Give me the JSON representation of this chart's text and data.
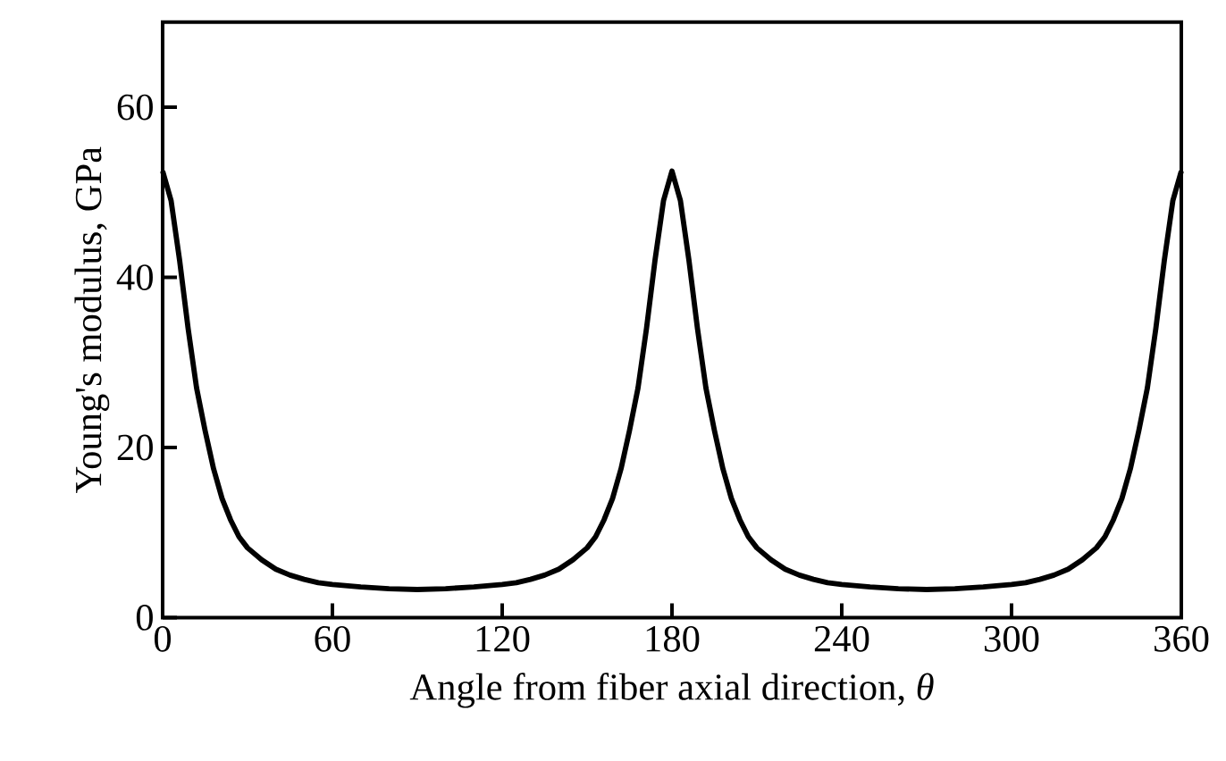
{
  "chart_data": {
    "type": "line",
    "xlabel": "Angle from fiber axial direction,  *θ*",
    "ylabel": "Young's modulus, GPa",
    "xlim": [
      0,
      360
    ],
    "ylim": [
      0,
      70
    ],
    "xticks": [
      0,
      60,
      120,
      180,
      240,
      300,
      360
    ],
    "yticks": [
      0,
      20,
      40,
      60
    ],
    "grid": false,
    "marker": "none",
    "line_style": "solid",
    "series": [
      {
        "color": "#000000",
        "x": [
          0,
          3,
          6,
          9,
          12,
          15,
          18,
          21,
          24,
          27,
          30,
          35,
          40,
          45,
          50,
          55,
          60,
          70,
          80,
          90,
          100,
          110,
          120,
          125,
          130,
          135,
          140,
          145,
          150,
          153,
          156,
          159,
          162,
          165,
          168,
          171,
          174,
          177,
          180,
          183,
          186,
          189,
          192,
          195,
          198,
          201,
          204,
          207,
          210,
          215,
          220,
          225,
          230,
          235,
          240,
          250,
          260,
          270,
          280,
          290,
          300,
          305,
          310,
          315,
          320,
          325,
          330,
          333,
          336,
          339,
          342,
          345,
          348,
          351,
          354,
          357,
          360
        ],
        "values": [
          52.5,
          49,
          42,
          34,
          27,
          22,
          17.5,
          14,
          11.5,
          9.5,
          8.2,
          6.8,
          5.7,
          5,
          4.5,
          4.1,
          3.9,
          3.6,
          3.4,
          3.3,
          3.4,
          3.6,
          3.9,
          4.1,
          4.5,
          5,
          5.7,
          6.8,
          8.2,
          9.5,
          11.5,
          14,
          17.5,
          22,
          27,
          34,
          42,
          49,
          52.5,
          49,
          42,
          34,
          27,
          22,
          17.5,
          14,
          11.5,
          9.5,
          8.2,
          6.8,
          5.7,
          5,
          4.5,
          4.1,
          3.9,
          3.6,
          3.4,
          3.3,
          3.4,
          3.6,
          3.9,
          4.1,
          4.5,
          5,
          5.7,
          6.8,
          8.2,
          9.5,
          11.5,
          14,
          17.5,
          22,
          27,
          34,
          42,
          49,
          52.5
        ]
      }
    ]
  }
}
